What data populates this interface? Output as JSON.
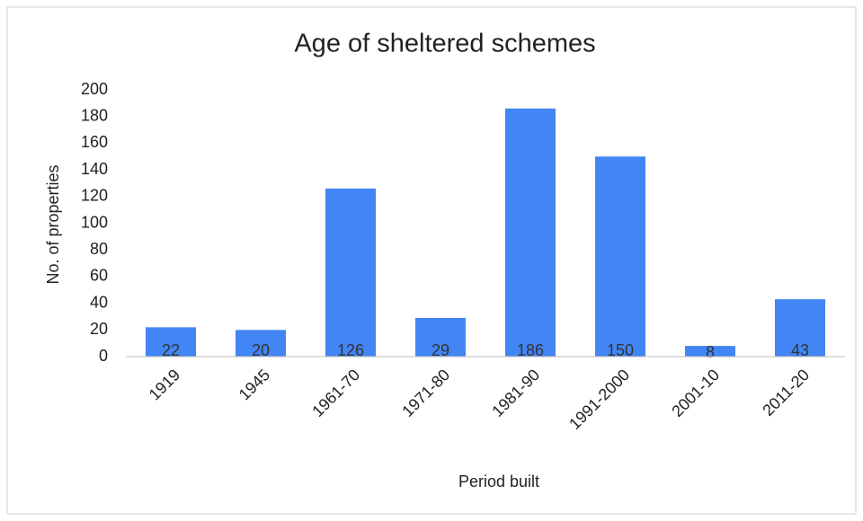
{
  "chart_data": {
    "type": "bar",
    "title": "Age of sheltered schemes",
    "x_label": "Period built",
    "y_label": "No. of properties",
    "categories": [
      "1919",
      "1945",
      "1961-70",
      "1971-80",
      "1981-90",
      "1991-2000",
      "2001-10",
      "2011-20"
    ],
    "values": [
      22,
      20,
      126,
      29,
      186,
      150,
      8,
      43
    ],
    "color": "#4285f4",
    "ylim": [
      0,
      200
    ],
    "yticks": [
      0,
      20,
      40,
      60,
      80,
      100,
      120,
      140,
      160,
      180,
      200
    ],
    "grid": false
  }
}
